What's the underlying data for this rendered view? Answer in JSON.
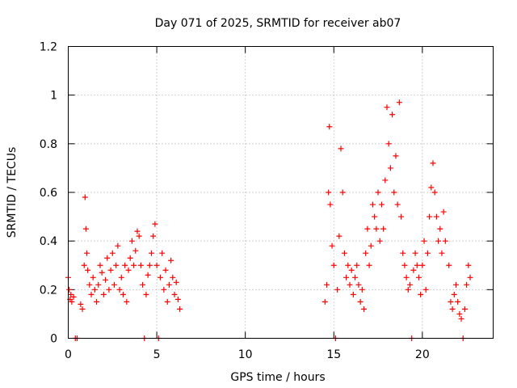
{
  "chart_data": {
    "type": "scatter",
    "title": "Day 071 of 2025, SRMTID for receiver ab07",
    "xlabel": "GPS time / hours",
    "ylabel": "SRMTID / TECUs",
    "xlim": [
      0,
      24
    ],
    "ylim": [
      0,
      1.2
    ],
    "xticks": [
      0,
      5,
      10,
      15,
      20
    ],
    "xtick_labels": [
      "0",
      "5",
      "10",
      "15",
      "20"
    ],
    "yticks": [
      0,
      0.2,
      0.4,
      0.6,
      0.8,
      1.0,
      1.2
    ],
    "ytick_labels": [
      "0",
      "0.2",
      "0.4",
      "0.6",
      "0.8",
      "1",
      "1.2"
    ],
    "grid": true,
    "marker": "+",
    "series": [
      {
        "name": "SRMTID",
        "color": "#ff0000",
        "x": [
          0.0,
          0.05,
          0.1,
          0.15,
          0.2,
          0.3,
          0.4,
          0.5,
          0.7,
          0.8,
          0.9,
          0.95,
          1.0,
          1.05,
          1.1,
          1.2,
          1.3,
          1.4,
          1.5,
          1.6,
          1.7,
          1.8,
          1.9,
          2.0,
          2.1,
          2.2,
          2.3,
          2.4,
          2.5,
          2.6,
          2.7,
          2.8,
          2.9,
          3.0,
          3.1,
          3.2,
          3.3,
          3.4,
          3.5,
          3.6,
          3.7,
          3.8,
          3.9,
          4.0,
          4.1,
          4.2,
          4.3,
          4.4,
          4.5,
          4.6,
          4.7,
          4.8,
          4.9,
          5.0,
          5.1,
          5.2,
          5.3,
          5.4,
          5.5,
          5.6,
          5.7,
          5.8,
          5.9,
          6.0,
          6.1,
          6.2,
          6.3,
          14.5,
          14.6,
          14.7,
          14.75,
          14.8,
          14.9,
          15.0,
          15.1,
          15.2,
          15.3,
          15.4,
          15.5,
          15.6,
          15.7,
          15.8,
          15.9,
          16.0,
          16.1,
          16.2,
          16.3,
          16.4,
          16.5,
          16.6,
          16.7,
          16.8,
          16.9,
          17.0,
          17.1,
          17.2,
          17.3,
          17.4,
          17.5,
          17.6,
          17.7,
          17.8,
          17.9,
          18.0,
          18.1,
          18.2,
          18.3,
          18.4,
          18.5,
          18.6,
          18.7,
          18.8,
          18.9,
          19.0,
          19.1,
          19.2,
          19.3,
          19.4,
          19.5,
          19.6,
          19.7,
          19.8,
          19.9,
          20.0,
          20.1,
          20.2,
          20.3,
          20.4,
          20.5,
          20.6,
          20.7,
          20.8,
          20.9,
          21.0,
          21.1,
          21.2,
          21.3,
          21.5,
          21.6,
          21.7,
          21.8,
          21.9,
          22.0,
          22.1,
          22.2,
          22.3,
          22.4,
          22.5,
          22.6,
          22.7
        ],
        "y": [
          0.25,
          0.2,
          0.16,
          0.18,
          0.15,
          0.17,
          0.0,
          0.0,
          0.14,
          0.12,
          0.3,
          0.58,
          0.45,
          0.35,
          0.28,
          0.22,
          0.18,
          0.25,
          0.2,
          0.15,
          0.22,
          0.3,
          0.27,
          0.18,
          0.24,
          0.33,
          0.2,
          0.28,
          0.35,
          0.22,
          0.3,
          0.38,
          0.2,
          0.25,
          0.18,
          0.3,
          0.15,
          0.28,
          0.33,
          0.4,
          0.3,
          0.36,
          0.44,
          0.42,
          0.3,
          0.22,
          0.0,
          0.18,
          0.26,
          0.3,
          0.35,
          0.42,
          0.47,
          0.3,
          0.0,
          0.25,
          0.35,
          0.2,
          0.28,
          0.15,
          0.22,
          0.32,
          0.25,
          0.18,
          0.23,
          0.16,
          0.12,
          0.15,
          0.22,
          0.6,
          0.87,
          0.55,
          0.38,
          0.3,
          0.0,
          0.2,
          0.42,
          0.78,
          0.6,
          0.35,
          0.25,
          0.3,
          0.22,
          0.28,
          0.18,
          0.25,
          0.3,
          0.22,
          0.15,
          0.2,
          0.12,
          0.35,
          0.45,
          0.3,
          0.38,
          0.55,
          0.5,
          0.45,
          0.6,
          0.4,
          0.55,
          0.45,
          0.65,
          0.95,
          0.8,
          0.7,
          0.92,
          0.6,
          0.75,
          0.55,
          0.97,
          0.5,
          0.35,
          0.3,
          0.25,
          0.2,
          0.22,
          0.0,
          0.28,
          0.35,
          0.3,
          0.25,
          0.18,
          0.3,
          0.4,
          0.2,
          0.35,
          0.5,
          0.62,
          0.72,
          0.6,
          0.5,
          0.4,
          0.45,
          0.35,
          0.52,
          0.4,
          0.3,
          0.15,
          0.12,
          0.18,
          0.22,
          0.15,
          0.1,
          0.08,
          0.0,
          0.12,
          0.22,
          0.3,
          0.25
        ]
      }
    ]
  }
}
